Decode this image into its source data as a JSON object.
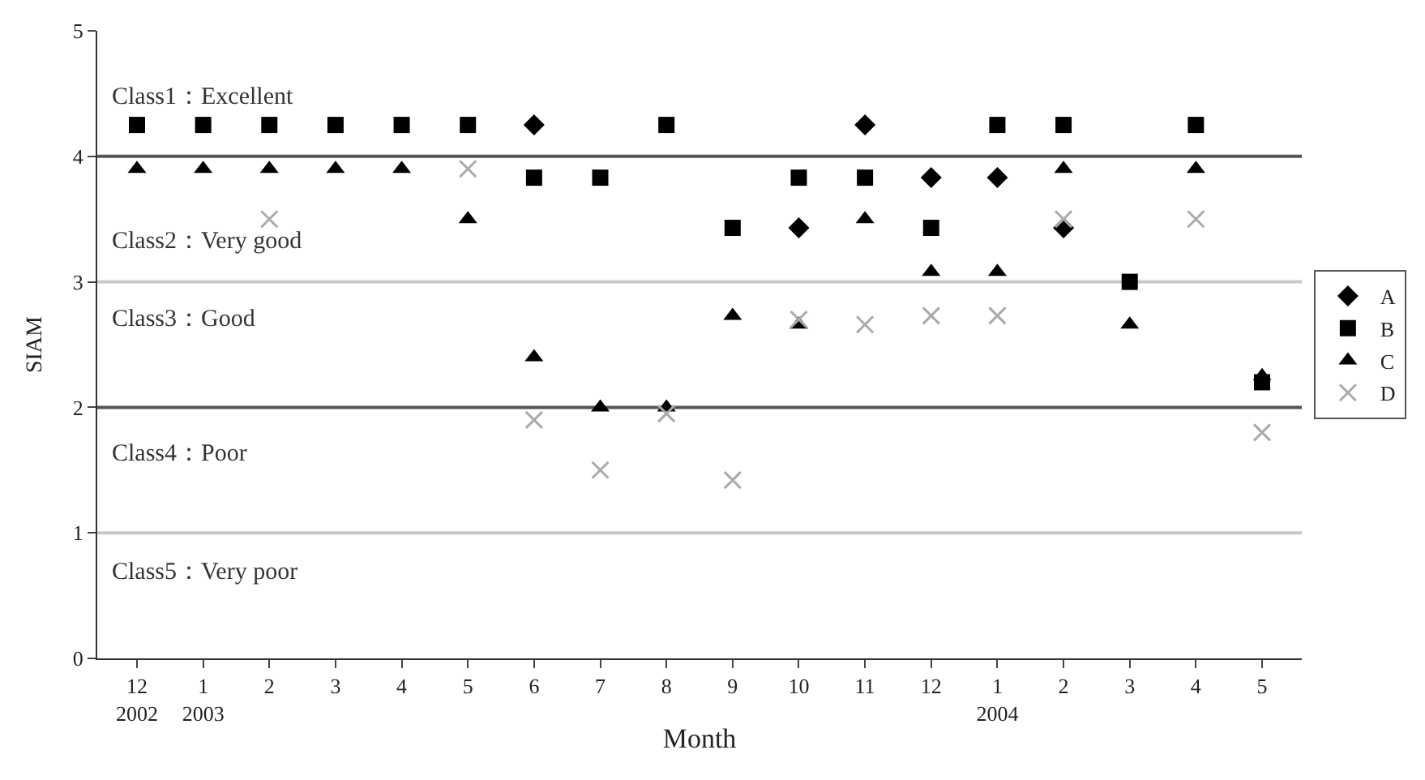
{
  "chart_data": {
    "type": "scatter",
    "xlabel": "Month",
    "ylabel": "SIAM",
    "categories": [
      "12\n2002",
      "1\n2003",
      "2",
      "3",
      "4",
      "5",
      "6",
      "7",
      "8",
      "9",
      "10",
      "11",
      "12",
      "1\n2004",
      "2",
      "3",
      "4",
      "5"
    ],
    "series": [
      {
        "name": "A",
        "color": "#000000",
        "marker": "diamond",
        "values": [
          null,
          null,
          null,
          null,
          null,
          null,
          4.25,
          null,
          null,
          null,
          3.43,
          4.25,
          3.83,
          3.83,
          3.43,
          null,
          null,
          null
        ]
      },
      {
        "name": "B",
        "color": "#000000",
        "marker": "square",
        "values": [
          4.25,
          4.25,
          4.25,
          4.25,
          4.25,
          4.25,
          3.83,
          3.83,
          4.25,
          3.43,
          3.83,
          3.83,
          3.43,
          4.25,
          4.25,
          3.0,
          4.25,
          2.2
        ]
      },
      {
        "name": "C",
        "color": "#000000",
        "marker": "triangle",
        "values": [
          3.9,
          3.9,
          3.9,
          3.9,
          3.9,
          3.5,
          2.4,
          2.0,
          2.0,
          2.73,
          2.66,
          3.5,
          3.08,
          3.08,
          3.9,
          2.66,
          3.9,
          2.25
        ]
      },
      {
        "name": "D",
        "color": "#aaaaaa",
        "marker": "cross",
        "values": [
          null,
          null,
          3.5,
          null,
          null,
          3.9,
          1.9,
          1.5,
          1.95,
          1.42,
          2.7,
          2.66,
          2.73,
          2.73,
          3.5,
          null,
          3.5,
          1.8
        ]
      }
    ],
    "ylim": [
      0,
      5
    ],
    "yticks": [
      0,
      1,
      2,
      3,
      4,
      5
    ],
    "ref_lines": [
      {
        "axis": "y",
        "value": 4,
        "color": "#555555"
      },
      {
        "axis": "y",
        "value": 3,
        "color": "#c8c8c8"
      },
      {
        "axis": "y",
        "value": 2,
        "color": "#555555"
      },
      {
        "axis": "y",
        "value": 1,
        "color": "#c8c8c8"
      }
    ],
    "annotations": [
      "Class1：Excellent",
      "Class2：Very good",
      "Class3：Good",
      "Class4：Poor",
      "Class5：Very poor"
    ],
    "grid": false,
    "legend": "right"
  }
}
